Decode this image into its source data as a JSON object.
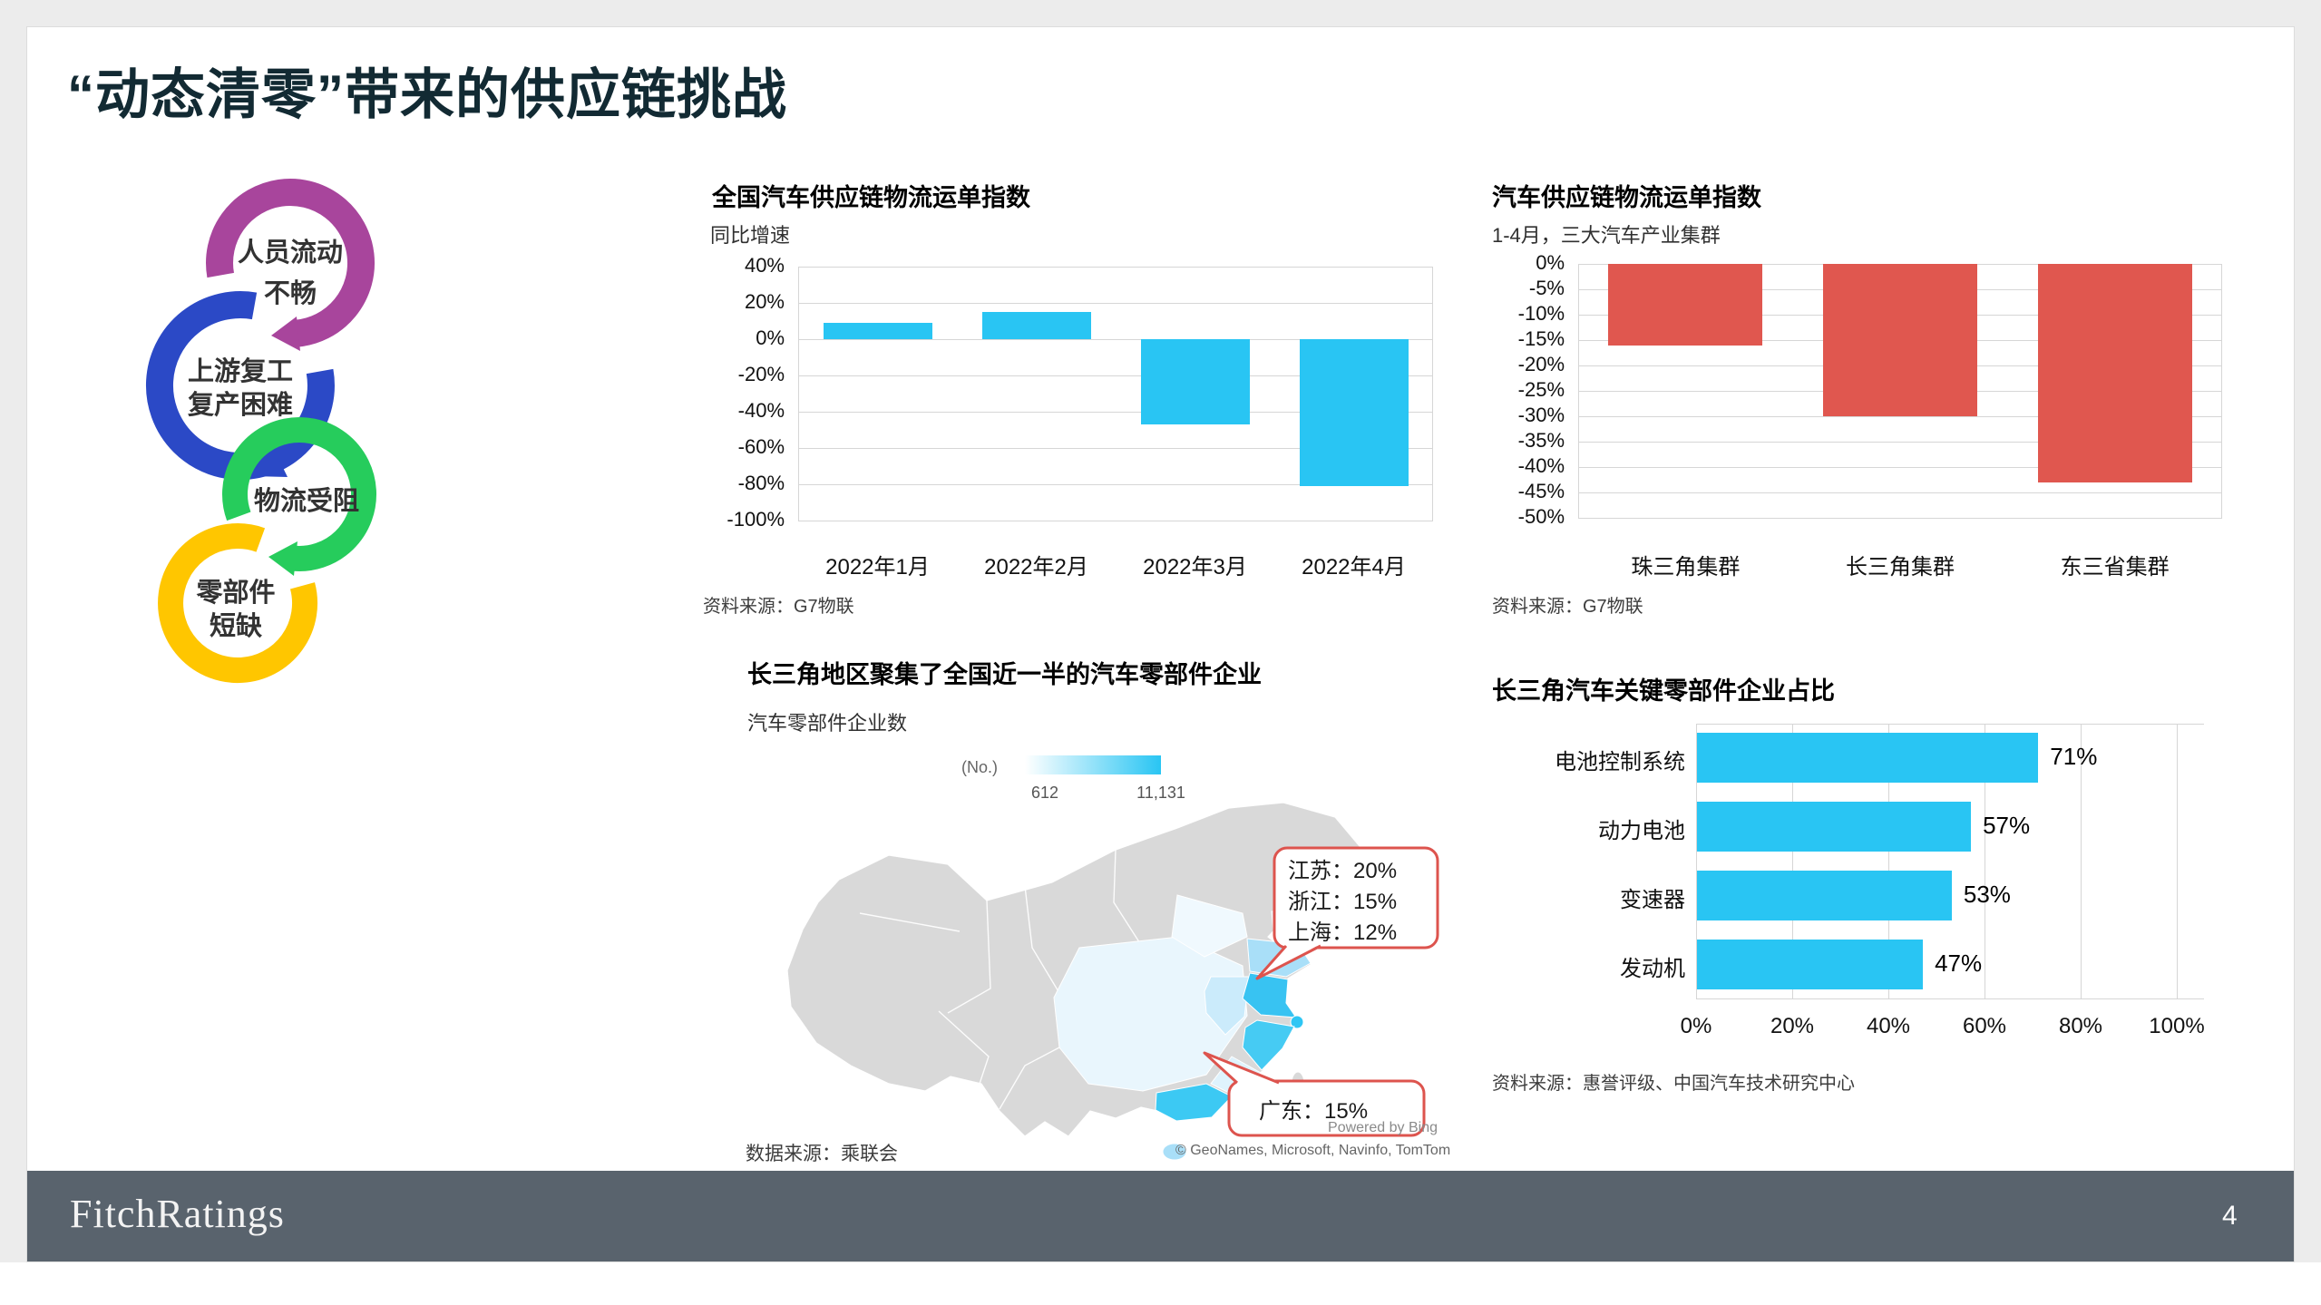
{
  "slide": {
    "title": "“动态清零”带来的供应链挑战",
    "title_color": "#122A33"
  },
  "cycle_diagram": {
    "text_color": "#333333",
    "items": [
      {
        "label_lines": [
          "人员流动",
          "不畅"
        ],
        "color": "#A8459C"
      },
      {
        "label_lines": [
          "上游复工",
          "复产困难"
        ],
        "color": "#2B49C6"
      },
      {
        "label_lines": [
          "物流受阻"
        ],
        "color": "#26CC5C"
      },
      {
        "label_lines": [
          "零部件",
          "短缺"
        ],
        "color": "#FFC600"
      }
    ]
  },
  "chart_data": [
    {
      "type": "bar",
      "title": "全国汽车供应链物流运单指数",
      "ylabel": "同比增速",
      "categories": [
        "2022年1月",
        "2022年2月",
        "2022年3月",
        "2022年4月"
      ],
      "values": [
        9,
        15,
        -47,
        -81
      ],
      "value_unit": "%",
      "yticks": [
        "40%",
        "20%",
        "0%",
        "-20%",
        "-40%",
        "-60%",
        "-80%",
        "-100%"
      ],
      "ylim": [
        40,
        -100
      ],
      "grid": true,
      "legend_position": "none",
      "bar_color": "#29C5F3",
      "source": "资料来源：G7物联"
    },
    {
      "type": "bar",
      "title": "汽车供应链物流运单指数",
      "subtitle": "1-4月，三大汽车产业集群",
      "categories": [
        "珠三角集群",
        "长三角集群",
        "东三省集群"
      ],
      "values": [
        -16,
        -30,
        -43
      ],
      "value_unit": "%",
      "yticks": [
        "0%",
        "-5%",
        "-10%",
        "-15%",
        "-20%",
        "-25%",
        "-30%",
        "-35%",
        "-40%",
        "-45%",
        "-50%"
      ],
      "ylim": [
        0,
        -50
      ],
      "grid": true,
      "legend_position": "none",
      "bar_color": "#E0574F",
      "source": "资料来源：G7物联"
    },
    {
      "type": "bar",
      "orientation": "horizontal",
      "title": "长三角汽车关键零部件企业占比",
      "categories": [
        "电池控制系统",
        "动力电池",
        "变速器",
        "发动机"
      ],
      "values": [
        71,
        57,
        53,
        47
      ],
      "value_labels": [
        "71%",
        "57%",
        "53%",
        "47%"
      ],
      "xticks": [
        "0%",
        "20%",
        "40%",
        "60%",
        "80%",
        "100%"
      ],
      "xlim": [
        0,
        100
      ],
      "grid": true,
      "legend_position": "none",
      "bar_color": "#29C5F3",
      "source": "资料来源：惠誉评级、中国汽车技术研究中心"
    }
  ],
  "map_section": {
    "title": "长三角地区聚集了全国近一半的汽车零部件企业",
    "subtitle": "汽车零部件企业数",
    "legend": {
      "label": "(No.)",
      "min": "612",
      "max": "11,131",
      "color_low": "#FFFFFF",
      "color_high": "#29C5F3"
    },
    "callouts": [
      {
        "lines": [
          "江苏：20%",
          "浙江：15%",
          "上海：12%"
        ]
      },
      {
        "lines": [
          "广东：15%"
        ]
      }
    ],
    "callout_border_color": "#DD544E",
    "source": "数据来源：乘联会",
    "attribution_line1": "Powered by Bing",
    "attribution_line2": "© GeoNames, Microsoft, Navinfo, TomTom"
  },
  "footer": {
    "logo": "FitchRatings",
    "page_number": "4",
    "background_color": "#59636D"
  }
}
